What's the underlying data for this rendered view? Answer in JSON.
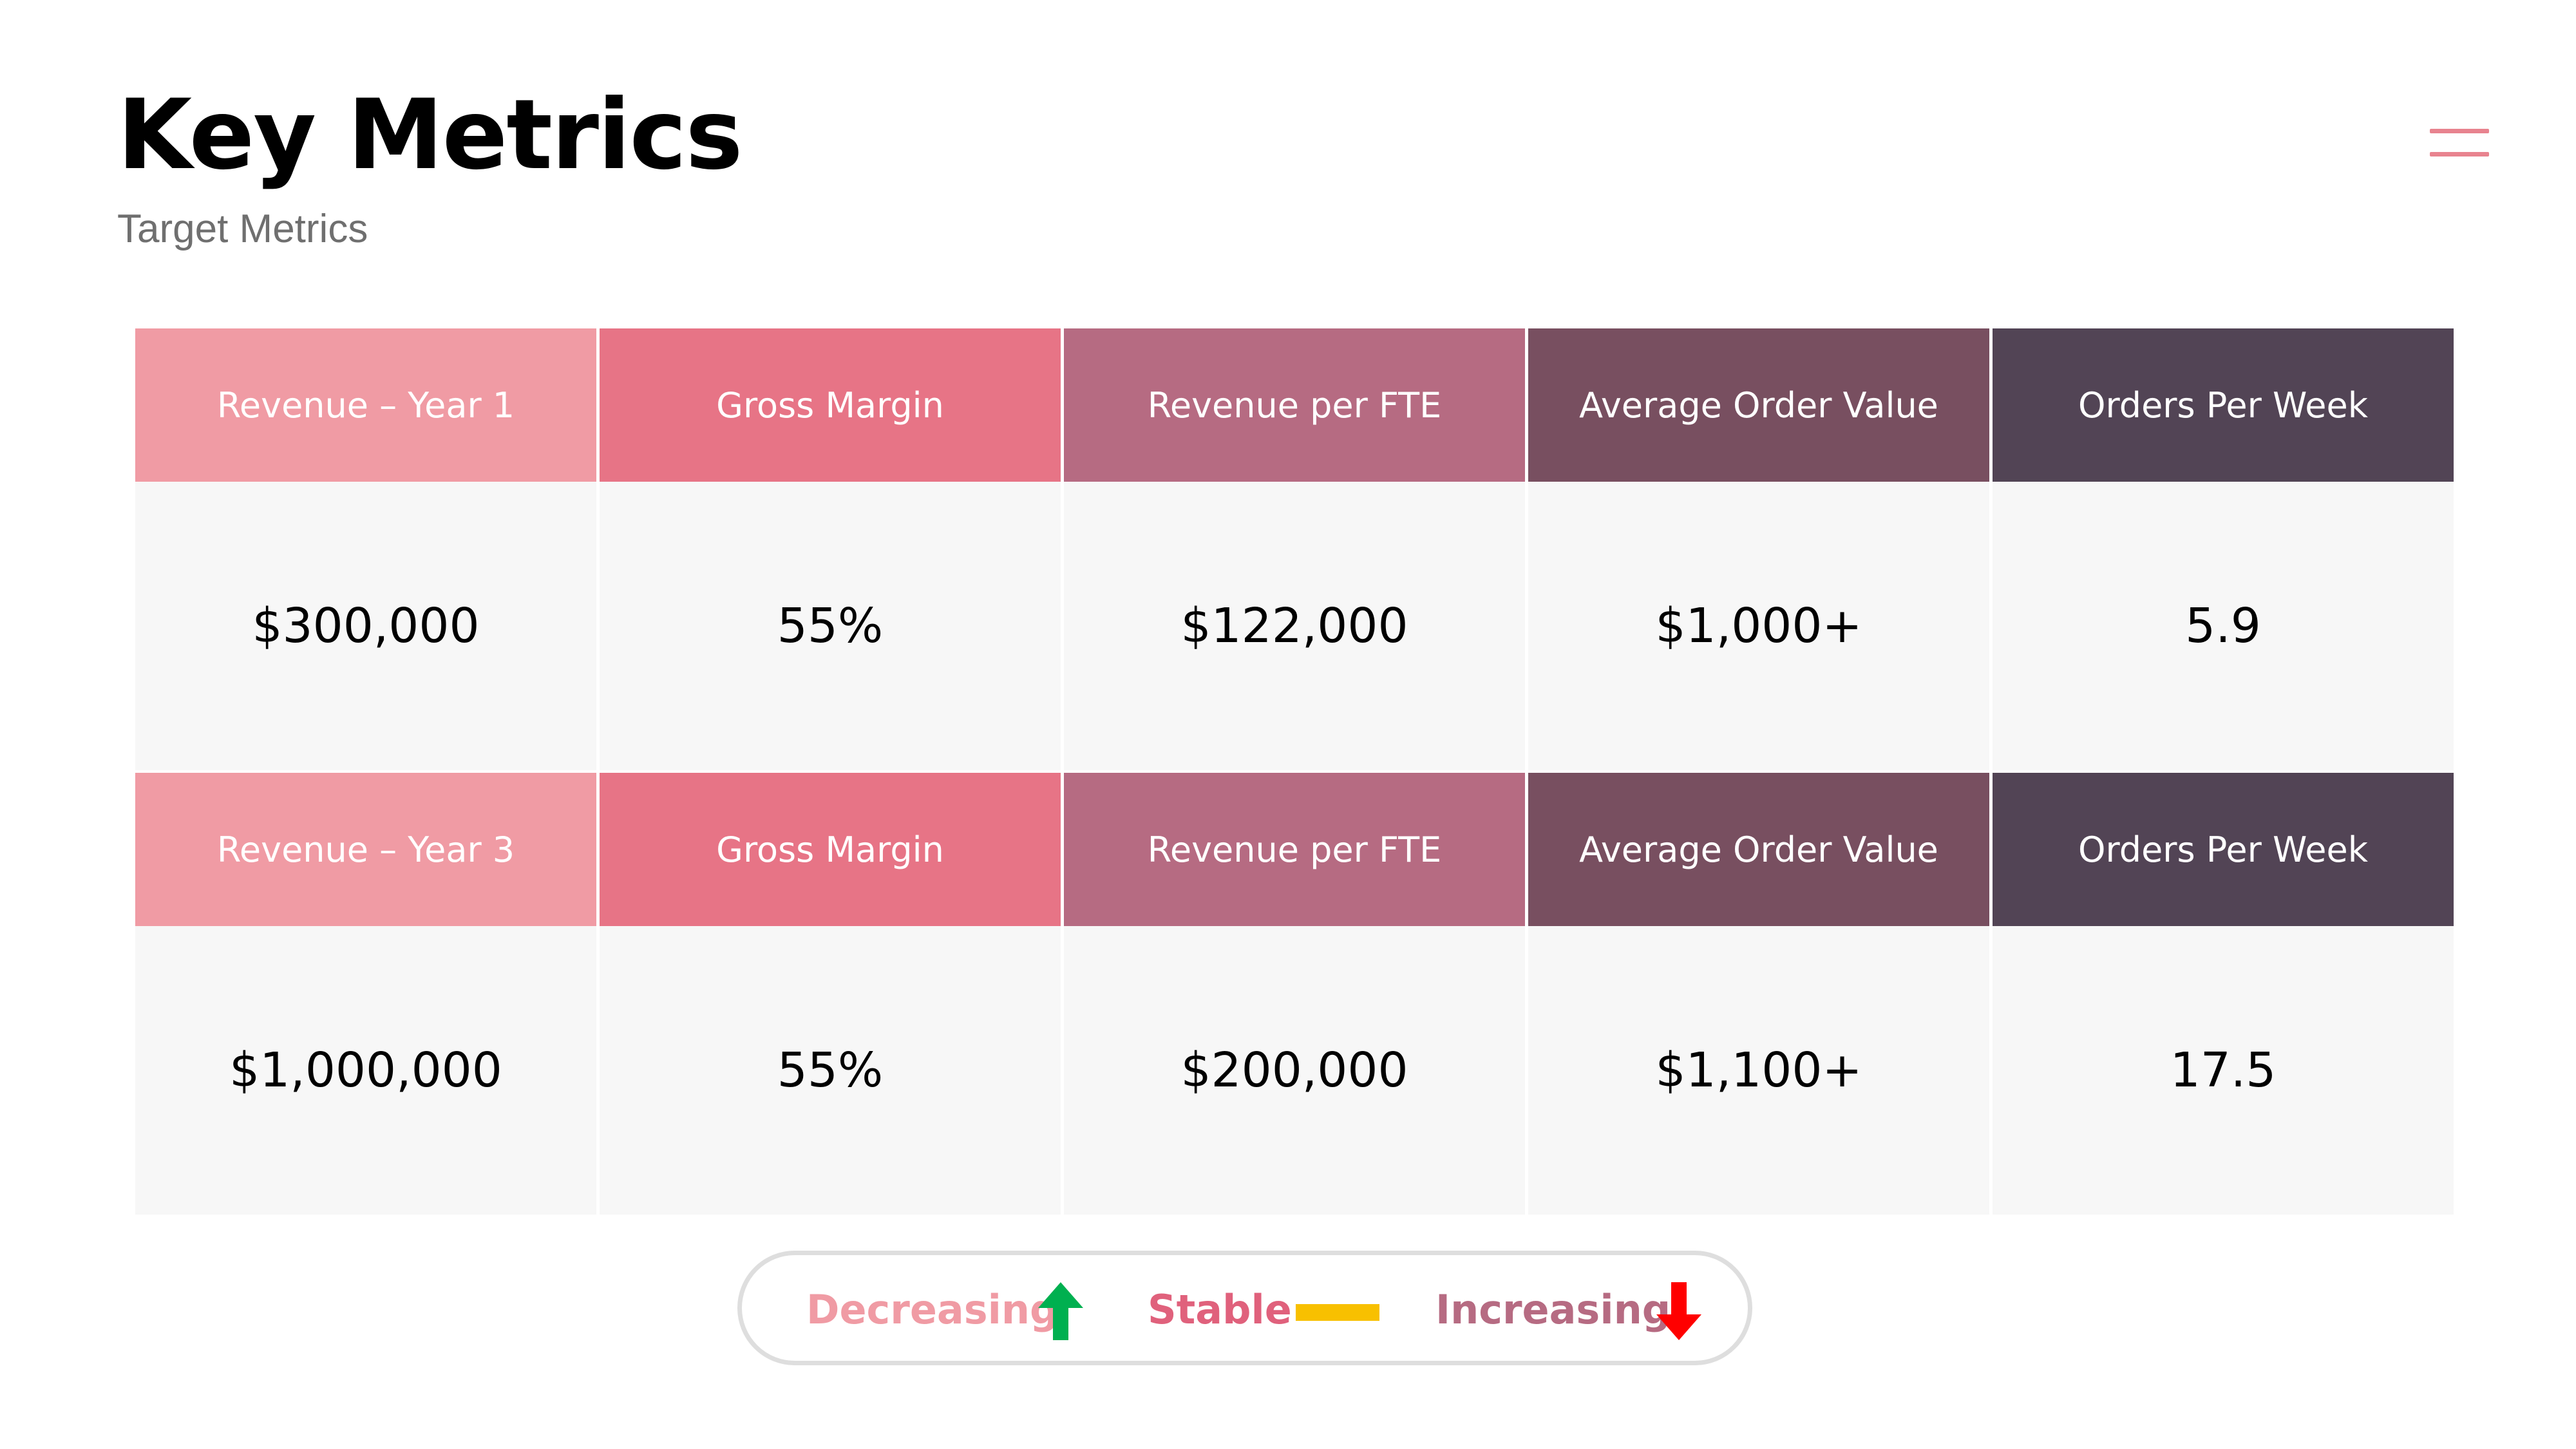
{
  "header": {
    "title": "Key Metrics",
    "subtitle": "Target Metrics"
  },
  "colors": {
    "col1": "#f09ba4",
    "col2": "#e77486",
    "col3": "#b66b82",
    "col4": "#784f60",
    "col5": "#524455",
    "cell_bg": "#f7f7f7",
    "menu_icon": "#e8838f"
  },
  "table": {
    "year1": {
      "headers": [
        "Revenue – Year 1",
        "Gross Margin",
        "Revenue per FTE",
        "Average Order Value",
        "Orders Per Week"
      ],
      "values": [
        "$300,000",
        "55%",
        "$122,000",
        "$1,000+",
        "5.9"
      ]
    },
    "year3": {
      "headers": [
        "Revenue – Year 3",
        "Gross Margin",
        "Revenue per FTE",
        "Average Order Value",
        "Orders Per Week"
      ],
      "values": [
        "$1,000,000",
        "55%",
        "$200,000",
        "$1,100+",
        "17.5"
      ]
    }
  },
  "legend": {
    "decreasing": {
      "label": "Decreasing",
      "icon": "arrow-up-icon",
      "color": "#00b050"
    },
    "stable": {
      "label": "Stable",
      "icon": "dash-icon",
      "color": "#f8c000"
    },
    "increasing": {
      "label": "Increasing",
      "icon": "arrow-down-icon",
      "color": "#ff0000"
    }
  },
  "menu": {
    "icon": "hamburger-menu-icon"
  }
}
